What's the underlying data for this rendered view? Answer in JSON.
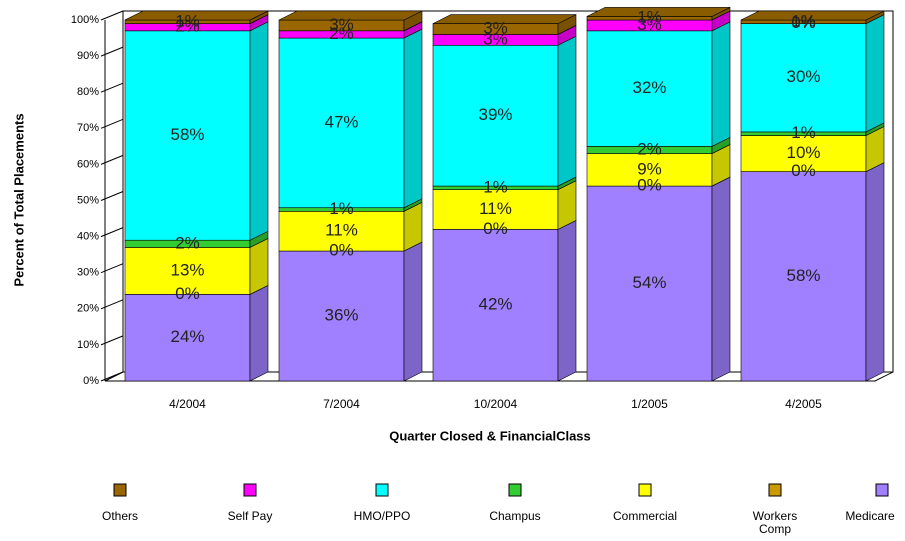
{
  "chart_data": {
    "type": "stacked-bar-3d",
    "x_label": "Quarter Closed & FinancialClass",
    "y_label": "Percent of Total Placements",
    "categories": [
      "4/2004",
      "7/2004",
      "10/2004",
      "1/2005",
      "4/2005"
    ],
    "ylim": [
      0,
      100
    ],
    "yticks": [
      {
        "value": 0,
        "label": "0%"
      },
      {
        "value": 10,
        "label": "10%"
      },
      {
        "value": 20,
        "label": "20%"
      },
      {
        "value": 30,
        "label": "30%"
      },
      {
        "value": 40,
        "label": "40%"
      },
      {
        "value": 50,
        "label": "50%"
      },
      {
        "value": 60,
        "label": "60%"
      },
      {
        "value": 70,
        "label": "70%"
      },
      {
        "value": 80,
        "label": "80%"
      },
      {
        "value": 90,
        "label": "90%"
      },
      {
        "value": 100,
        "label": "100%"
      }
    ],
    "legend_order": [
      6,
      5,
      4,
      3,
      2,
      1,
      0
    ],
    "series": [
      {
        "name": "Medicare",
        "color": "#a080ff",
        "values": [
          24,
          36,
          42,
          54,
          58
        ],
        "value_labels": [
          "24%",
          "36%",
          "42%",
          "54%",
          "58%"
        ]
      },
      {
        "name": "Workers Comp",
        "color": "#cc9900",
        "values": [
          0,
          0,
          0,
          0,
          0
        ],
        "value_labels": [
          "0%",
          "0%",
          "0%",
          "0%",
          "0%"
        ]
      },
      {
        "name": "Commercial",
        "color": "#ffff00",
        "values": [
          13,
          11,
          11,
          9,
          10
        ],
        "value_labels": [
          "13%",
          "11%",
          "11%",
          "9%",
          "10%"
        ]
      },
      {
        "name": "Champus",
        "color": "#33cc33",
        "values": [
          2,
          1,
          1,
          2,
          1
        ],
        "value_labels": [
          "2%",
          "1%",
          "1%",
          "2%",
          "1%"
        ]
      },
      {
        "name": "HMO/PPO",
        "color": "#00ffff",
        "values": [
          58,
          47,
          39,
          32,
          30
        ],
        "value_labels": [
          "58%",
          "47%",
          "39%",
          "32%",
          "30%"
        ]
      },
      {
        "name": "Self Pay",
        "color": "#ff00ff",
        "values": [
          2,
          2,
          3,
          3,
          0
        ],
        "value_labels": [
          "2%",
          "2%",
          "3%",
          "3%",
          "0%"
        ]
      },
      {
        "name": "Others",
        "color": "#996600",
        "values": [
          1,
          3,
          3,
          1,
          1
        ],
        "value_labels": [
          "1%",
          "3%",
          "3%",
          "1%",
          "1%"
        ]
      }
    ]
  }
}
